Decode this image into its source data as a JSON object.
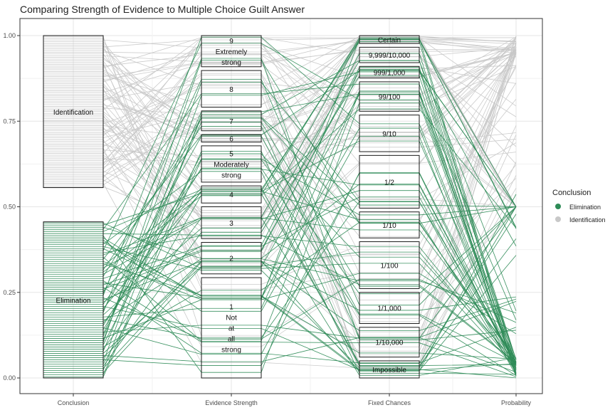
{
  "chart_data": {
    "type": "alluvial",
    "title": "Comparing Strength of Evidence to Multiple Choice Guilt Answer",
    "xlabel": "",
    "ylabel": "",
    "ylim": [
      0,
      1
    ],
    "y_ticks": [
      "0.00",
      "0.25",
      "0.50",
      "0.75",
      "1.00"
    ],
    "axes": [
      "Conclusion",
      "Evidence Strength",
      "Fixed Chances",
      "Probability"
    ],
    "legend": {
      "title": "Conclusion",
      "position": "right",
      "entries": [
        "Elimination",
        "Identification"
      ]
    },
    "colors": {
      "Elimination": "#2e8b57",
      "Identification": "#c8c8c8"
    },
    "strata": {
      "Conclusion": [
        {
          "label": "Elimination",
          "ymin": 0.0,
          "ymax": 0.456
        },
        {
          "label": "Identification",
          "ymin": 0.556,
          "ymax": 1.0
        }
      ],
      "Evidence Strength": [
        {
          "label": "1\nNot\nat\nall\nstrong",
          "ymin": 0.0,
          "ymax": 0.293
        },
        {
          "label": "2",
          "ymin": 0.304,
          "ymax": 0.396
        },
        {
          "label": "3",
          "ymin": 0.407,
          "ymax": 0.5
        },
        {
          "label": "4",
          "ymin": 0.511,
          "ymax": 0.561
        },
        {
          "label": "5\nModerately\nstrong",
          "ymin": 0.572,
          "ymax": 0.678
        },
        {
          "label": "6",
          "ymin": 0.689,
          "ymax": 0.711
        },
        {
          "label": "7",
          "ymin": 0.722,
          "ymax": 0.78
        },
        {
          "label": "8",
          "ymin": 0.791,
          "ymax": 0.898
        },
        {
          "label": "9\nExtremely\nstrong",
          "ymin": 0.909,
          "ymax": 1.0
        }
      ],
      "Fixed Chances": [
        {
          "label": "Impossible",
          "ymin": 0.0,
          "ymax": 0.05
        },
        {
          "label": "1/10,000",
          "ymin": 0.061,
          "ymax": 0.148
        },
        {
          "label": "1/1,000",
          "ymin": 0.159,
          "ymax": 0.25
        },
        {
          "label": "1/100",
          "ymin": 0.261,
          "ymax": 0.398
        },
        {
          "label": "1/10",
          "ymin": 0.409,
          "ymax": 0.485
        },
        {
          "label": "1/2",
          "ymin": 0.496,
          "ymax": 0.65
        },
        {
          "label": "9/10",
          "ymin": 0.661,
          "ymax": 0.768
        },
        {
          "label": "99/100",
          "ymin": 0.779,
          "ymax": 0.865
        },
        {
          "label": "999/1,000",
          "ymin": 0.876,
          "ymax": 0.91
        },
        {
          "label": "9,999/10,000",
          "ymin": 0.921,
          "ymax": 0.966
        },
        {
          "label": "Certain",
          "ymin": 0.977,
          "ymax": 1.0
        }
      ]
    },
    "n_flows": 160,
    "elimination_share": 0.456
  }
}
